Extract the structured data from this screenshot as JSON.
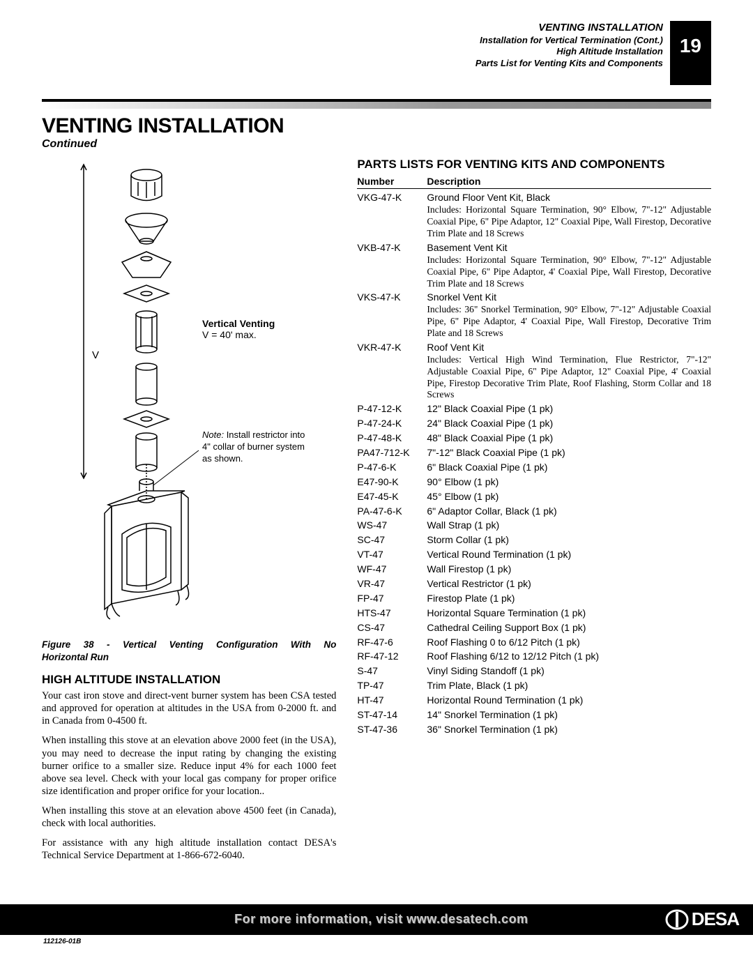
{
  "header": {
    "line1": "VENTING INSTALLATION",
    "line2": "Installation for Vertical Termination (Cont.)",
    "line3": "High Altitude Installation",
    "line4": "Parts List for Venting Kits and Components",
    "page_number": "19"
  },
  "main_title": "VENTING INSTALLATION",
  "continued": "Continued",
  "figure": {
    "venting_label_bold": "Vertical Venting",
    "venting_label_eq": "V = 40' max.",
    "v_marker": "V",
    "note_label": "Note:",
    "note_text": " Install restrictor into 4\" collar of burner system as shown.",
    "caption_line1": "Figure 38 - Vertical Venting Configuration With No",
    "caption_line2": "Horizontal Run"
  },
  "high_altitude": {
    "heading": "HIGH ALTITUDE INSTALLATION",
    "p1": "Your cast iron stove and direct-vent burner system has been CSA tested and approved for operation at altitudes in the USA from 0-2000 ft. and in Canada from 0-4500 ft.",
    "p2": "When installing this stove at an elevation above 2000 feet (in the USA), you may need to decrease the input rating by changing the existing burner orifice to a smaller size. Reduce input 4% for each 1000 feet above sea level. Check with your local gas company for proper orifice size identification and proper orifice for your location..",
    "p3": "When installing this stove at an elevation above 4500 feet (in Canada), check with local authorities.",
    "p4": "For assistance with any high altitude installation contact DESA's Technical Service Department at 1-866-672-6040."
  },
  "parts": {
    "heading": "PARTS LISTS FOR VENTING KITS AND COMPONENTS",
    "col1": "Number",
    "col2": "Description",
    "kits": [
      {
        "num": "VKG-47-K",
        "name": "Ground Floor Vent Kit, Black",
        "detail": "Includes: Horizontal Square Termination, 90° Elbow, 7\"-12\" Adjustable Coaxial Pipe, 6\" Pipe Adaptor, 12\" Coaxial Pipe, Wall Firestop, Decorative Trim Plate and 18 Screws"
      },
      {
        "num": "VKB-47-K",
        "name": "Basement Vent Kit",
        "detail": "Includes: Horizontal Square Termination, 90° Elbow, 7\"-12\" Adjustable Coaxial Pipe, 6\" Pipe Adaptor, 4' Coaxial Pipe, Wall Firestop, Decorative Trim Plate and 18 Screws"
      },
      {
        "num": "VKS-47-K",
        "name": "Snorkel Vent Kit",
        "detail": "Includes: 36\" Snorkel Termination, 90° Elbow, 7\"-12\" Adjustable Coaxial Pipe, 6\" Pipe Adaptor, 4' Coaxial Pipe, Wall Firestop, Decorative Trim Plate and 18 Screws"
      },
      {
        "num": "VKR-47-K",
        "name": "Roof Vent Kit",
        "detail": "Includes: Vertical High Wind Termination, Flue Restrictor, 7\"-12\" Adjustable Coaxial Pipe, 6\" Pipe Adaptor, 12\" Coaxial Pipe, 4' Coaxial Pipe, Firestop Decorative Trim Plate, Roof Flashing, Storm Collar and 18 Screws"
      }
    ],
    "rows": [
      {
        "num": "P-47-12-K",
        "desc": "12\" Black Coaxial Pipe (1 pk)"
      },
      {
        "num": "P-47-24-K",
        "desc": "24\" Black Coaxial Pipe (1 pk)"
      },
      {
        "num": "P-47-48-K",
        "desc": "48\" Black Coaxial Pipe (1 pk)"
      },
      {
        "num": "PA47-712-K",
        "desc": "7\"-12\" Black Coaxial Pipe (1 pk)"
      },
      {
        "num": "P-47-6-K",
        "desc": "6\" Black Coaxial Pipe (1 pk)"
      },
      {
        "num": "E47-90-K",
        "desc": "90° Elbow (1 pk)"
      },
      {
        "num": "E47-45-K",
        "desc": "45° Elbow (1 pk)"
      },
      {
        "num": "PA-47-6-K",
        "desc": "6\" Adaptor Collar, Black (1 pk)"
      },
      {
        "num": "WS-47",
        "desc": "Wall Strap (1 pk)"
      },
      {
        "num": "SC-47",
        "desc": "Storm Collar (1 pk)"
      },
      {
        "num": "VT-47",
        "desc": "Vertical Round Termination (1 pk)"
      },
      {
        "num": "WF-47",
        "desc": "Wall Firestop (1 pk)"
      },
      {
        "num": "VR-47",
        "desc": "Vertical Restrictor (1 pk)"
      },
      {
        "num": "FP-47",
        "desc": "Firestop Plate (1 pk)"
      },
      {
        "num": "HTS-47",
        "desc": "Horizontal Square Termination (1 pk)"
      },
      {
        "num": "CS-47",
        "desc": "Cathedral Ceiling Support Box (1 pk)"
      },
      {
        "num": "RF-47-6",
        "desc": "Roof Flashing 0 to 6/12 Pitch (1 pk)"
      },
      {
        "num": "RF-47-12",
        "desc": "Roof Flashing 6/12 to 12/12 Pitch (1 pk)"
      },
      {
        "num": "S-47",
        "desc": "Vinyl Siding Standoff (1 pk)"
      },
      {
        "num": "TP-47",
        "desc": "Trim Plate, Black (1 pk)"
      },
      {
        "num": "HT-47",
        "desc": "Horizontal Round Termination (1 pk)"
      },
      {
        "num": "ST-47-14",
        "desc": "14\" Snorkel Termination (1 pk)"
      },
      {
        "num": "ST-47-36",
        "desc": "36\" Snorkel Termination (1 pk)"
      }
    ]
  },
  "footer": {
    "text": "For more information, visit www.desatech.com",
    "doc_id": "112126-01B",
    "logo_text": "DESA"
  }
}
